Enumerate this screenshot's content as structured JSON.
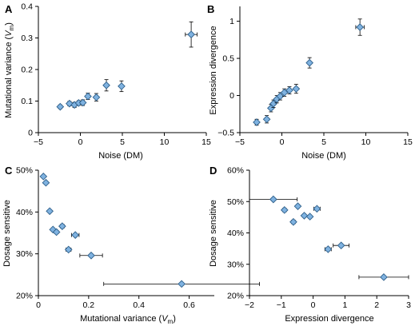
{
  "colors": {
    "marker_fill": "#7fb2e0",
    "marker_stroke": "#2e5f8a",
    "axis": "#000000"
  },
  "chart_data": [
    {
      "panel": "A",
      "type": "scatter",
      "xlabel": "Noise (DM)",
      "ylabel_main": "Mutational variance (",
      "ylabel_sym": "V",
      "ylabel_sub": "m",
      "ylabel_end": ")",
      "xlim": [
        -5,
        15
      ],
      "ylim": [
        0,
        0.4
      ],
      "xticks": [
        -5,
        0,
        5,
        10,
        15
      ],
      "yticks": [
        0,
        0.1,
        0.2,
        0.3,
        0.4
      ],
      "xtick_labels": [
        "−5",
        "0",
        "5",
        "10",
        "15"
      ],
      "ytick_labels": [
        "0",
        "0.1",
        "0.2",
        "0.3",
        "0.4"
      ],
      "points": [
        {
          "x": -2.4,
          "y": 0.082,
          "yerr": 0.006,
          "xerr": 0
        },
        {
          "x": -1.3,
          "y": 0.092,
          "yerr": 0.007,
          "xerr": 0
        },
        {
          "x": -0.7,
          "y": 0.088,
          "yerr": 0.008,
          "xerr": 0
        },
        {
          "x": -0.2,
          "y": 0.094,
          "yerr": 0.007,
          "xerr": 0
        },
        {
          "x": 0.3,
          "y": 0.095,
          "yerr": 0.009,
          "xerr": 0
        },
        {
          "x": 0.9,
          "y": 0.115,
          "yerr": 0.01,
          "xerr": 0
        },
        {
          "x": 1.9,
          "y": 0.112,
          "yerr": 0.012,
          "xerr": 0
        },
        {
          "x": 3.1,
          "y": 0.15,
          "yerr": 0.018,
          "xerr": 0
        },
        {
          "x": 4.9,
          "y": 0.147,
          "yerr": 0.017,
          "xerr": 0
        },
        {
          "x": 13.2,
          "y": 0.311,
          "yerr": 0.04,
          "xerr": 0.7
        }
      ]
    },
    {
      "panel": "B",
      "type": "scatter",
      "xlabel": "Noise (DM)",
      "ylabel": "Expression divergence",
      "xlim": [
        -5,
        15
      ],
      "ylim": [
        -0.5,
        1.2
      ],
      "xticks": [
        -5,
        0,
        5,
        10,
        15
      ],
      "yticks": [
        -0.5,
        0,
        0.5,
        1
      ],
      "xtick_labels": [
        "−5",
        "0",
        "5",
        "10",
        "15"
      ],
      "ytick_labels": [
        "−0.5",
        "0",
        "0.5",
        "1"
      ],
      "points": [
        {
          "x": -3.0,
          "y": -0.36,
          "yerr": 0.04,
          "xerr": 0
        },
        {
          "x": -1.8,
          "y": -0.32,
          "yerr": 0.05,
          "xerr": 0
        },
        {
          "x": -1.3,
          "y": -0.17,
          "yerr": 0.05,
          "xerr": 0
        },
        {
          "x": -1.0,
          "y": -0.11,
          "yerr": 0.05,
          "xerr": 0
        },
        {
          "x": -0.6,
          "y": -0.05,
          "yerr": 0.05,
          "xerr": 0
        },
        {
          "x": -0.2,
          "y": -0.01,
          "yerr": 0.05,
          "xerr": 0
        },
        {
          "x": 0.3,
          "y": 0.04,
          "yerr": 0.05,
          "xerr": 0
        },
        {
          "x": 0.9,
          "y": 0.07,
          "yerr": 0.05,
          "xerr": 0
        },
        {
          "x": 1.7,
          "y": 0.09,
          "yerr": 0.06,
          "xerr": 0
        },
        {
          "x": 3.3,
          "y": 0.44,
          "yerr": 0.07,
          "xerr": 0
        },
        {
          "x": 9.3,
          "y": 0.92,
          "yerr": 0.11,
          "xerr": 0.5
        }
      ]
    },
    {
      "panel": "C",
      "type": "scatter",
      "xlabel_main": "Mutational variance (",
      "xlabel_sym": "V",
      "xlabel_sub": "m",
      "xlabel_end": ")",
      "ylabel": "Dosage sensitive",
      "xlim": [
        0,
        0.7
      ],
      "ylim": [
        0.2,
        0.5
      ],
      "xticks": [
        0,
        0.2,
        0.4,
        0.6
      ],
      "yticks": [
        0.2,
        0.3,
        0.4,
        0.5
      ],
      "xtick_labels": [
        "0",
        "0.2",
        "0.4",
        "0.6"
      ],
      "ytick_labels": [
        "20%",
        "30%",
        "40%",
        "50%"
      ],
      "points": [
        {
          "x": 0.02,
          "y": 0.485,
          "xerr": 0.004,
          "yerr": 0
        },
        {
          "x": 0.03,
          "y": 0.47,
          "xerr": 0.004,
          "yerr": 0
        },
        {
          "x": 0.045,
          "y": 0.402,
          "xerr": 0.005,
          "yerr": 0
        },
        {
          "x": 0.058,
          "y": 0.358,
          "xerr": 0.006,
          "yerr": 0
        },
        {
          "x": 0.072,
          "y": 0.352,
          "xerr": 0.007,
          "yerr": 0
        },
        {
          "x": 0.095,
          "y": 0.366,
          "xerr": 0.008,
          "yerr": 0
        },
        {
          "x": 0.12,
          "y": 0.31,
          "xerr": 0.01,
          "yerr": 0
        },
        {
          "x": 0.147,
          "y": 0.345,
          "xerr": 0.015,
          "yerr": 0
        },
        {
          "x": 0.21,
          "y": 0.296,
          "xerr": 0.045,
          "yerr": 0
        },
        {
          "x": 0.57,
          "y": 0.228,
          "xerr": 0.31,
          "yerr": 0
        }
      ]
    },
    {
      "panel": "D",
      "type": "scatter",
      "xlabel": "Expression divergence",
      "ylabel": "Dosage sensitive",
      "xlim": [
        -2,
        3
      ],
      "ylim": [
        0.2,
        0.6
      ],
      "xticks": [
        -2,
        -1,
        0,
        1,
        2,
        3
      ],
      "yticks": [
        0.2,
        0.3,
        0.4,
        0.5,
        0.6
      ],
      "xtick_labels": [
        "−2",
        "−1",
        "0",
        "1",
        "2",
        "3"
      ],
      "ytick_labels": [
        "20%",
        "30%",
        "40%",
        "50%",
        "60%"
      ],
      "points": [
        {
          "x": -1.25,
          "y": 0.507,
          "xerr": 0.75,
          "yerr": 0
        },
        {
          "x": -0.9,
          "y": 0.473,
          "xerr": 0.06,
          "yerr": 0
        },
        {
          "x": -0.62,
          "y": 0.435,
          "xerr": 0.06,
          "yerr": 0
        },
        {
          "x": -0.48,
          "y": 0.485,
          "xerr": 0.05,
          "yerr": 0
        },
        {
          "x": -0.28,
          "y": 0.455,
          "xerr": 0.05,
          "yerr": 0
        },
        {
          "x": -0.1,
          "y": 0.452,
          "xerr": 0.05,
          "yerr": 0
        },
        {
          "x": 0.12,
          "y": 0.477,
          "xerr": 0.1,
          "yerr": 0
        },
        {
          "x": 0.47,
          "y": 0.348,
          "xerr": 0.1,
          "yerr": 0
        },
        {
          "x": 0.88,
          "y": 0.36,
          "xerr": 0.25,
          "yerr": 0
        },
        {
          "x": 2.22,
          "y": 0.259,
          "xerr": 0.78,
          "yerr": 0
        }
      ]
    }
  ]
}
